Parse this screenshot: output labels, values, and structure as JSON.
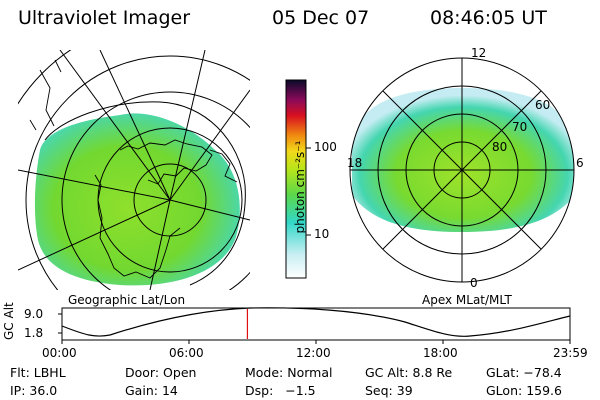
{
  "header": {
    "instrument": "Ultraviolet Imager",
    "date": "05 Dec 07",
    "time": "08:46:05 UT"
  },
  "colorbar": {
    "unit_label": "photon cm⁻²s⁻¹",
    "ticks": [
      "100",
      "10"
    ]
  },
  "left_panel": {
    "caption": "Geographic Lat/Lon"
  },
  "right_panel": {
    "caption": "Apex MLat/MLT",
    "mlt_labels": {
      "top": "12",
      "left": "18",
      "right": "6",
      "bottom": "0"
    },
    "lat_labels": [
      "80",
      "70",
      "60"
    ]
  },
  "altitude_plot": {
    "ylabel": "GC Alt",
    "yticks": [
      "9.0",
      "1.8"
    ],
    "xticks": [
      "00:00",
      "06:00",
      "12:00",
      "18:00",
      "23:59"
    ],
    "current_time_fraction": 0.365
  },
  "footer": {
    "filter": {
      "label": "Flt:",
      "value": "LBHL"
    },
    "door": {
      "label": "Door:",
      "value": "Open"
    },
    "mode": {
      "label": "Mode:",
      "value": "Normal"
    },
    "gc_alt": {
      "label": "GC Alt:",
      "value": "8.8 Re"
    },
    "glat": {
      "label": "GLat:",
      "value": "−78.4"
    },
    "ip": {
      "label": "IP:",
      "value": "36.0"
    },
    "gain": {
      "label": "Gain:",
      "value": "14"
    },
    "dsp": {
      "label": "Dsp:",
      "value": "−1.5"
    },
    "seq": {
      "label": "Seq:",
      "value": "39"
    },
    "glon": {
      "label": "GLon:",
      "value": "159.6"
    }
  },
  "colors": {
    "aurora_main": "#7ddc2a",
    "aurora_edge": "#33d6c0",
    "marker": "#e01010"
  }
}
